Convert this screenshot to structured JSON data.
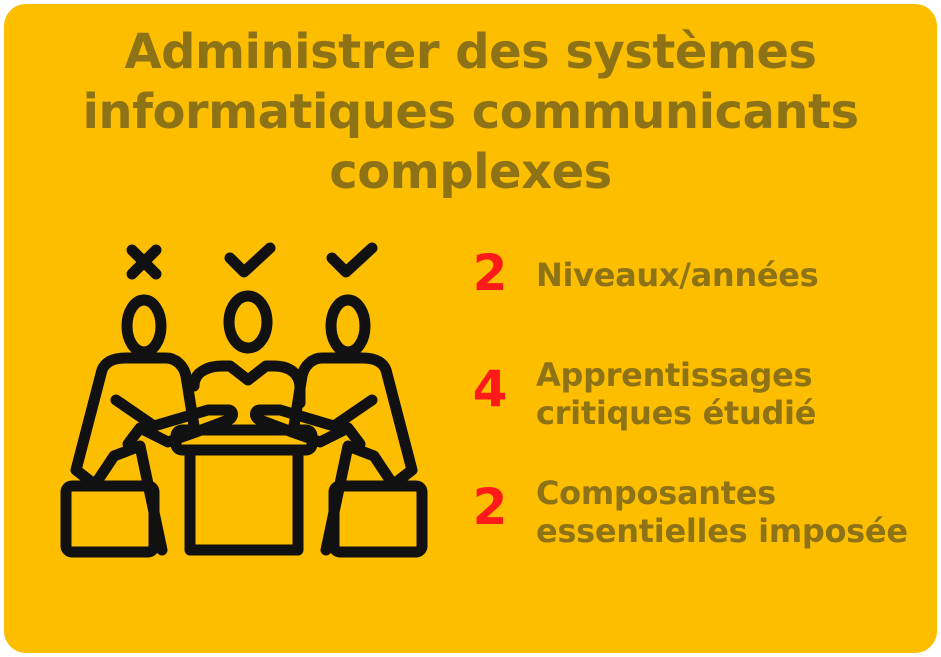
{
  "title": {
    "line1": "Administrer des systèmes",
    "line2": "informatiques communicants",
    "line3": "complexes"
  },
  "stats": [
    {
      "number": "2",
      "label_lines": [
        "Niveaux/années"
      ]
    },
    {
      "number": "4",
      "label_lines": [
        "Apprentissages",
        "critiques étudié"
      ]
    },
    {
      "number": "2",
      "label_lines": [
        "Composantes",
        "essentielles imposée"
      ]
    }
  ],
  "illustration": {
    "icon": "team-meeting-vote-icon",
    "marks": [
      "cross-mark-icon",
      "check-mark-icon",
      "check-mark-icon"
    ]
  },
  "colors": {
    "background": "#fdbe00",
    "text": "#8d7316",
    "number": "#ff1a1a",
    "icon": "#111111"
  }
}
